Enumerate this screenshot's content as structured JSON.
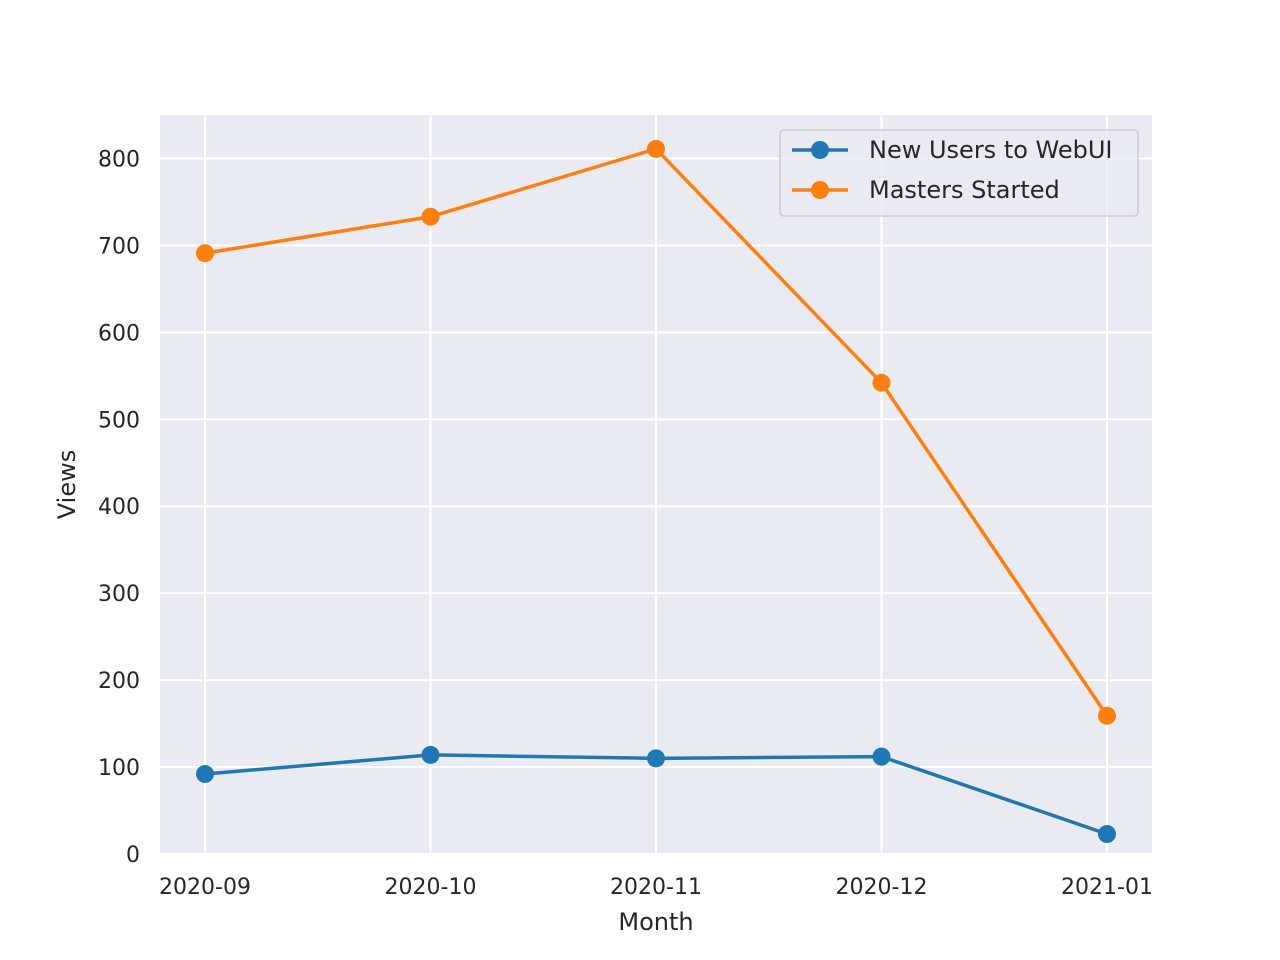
{
  "chart_data": {
    "type": "line",
    "title": "",
    "xlabel": "Month",
    "ylabel": "Views",
    "categories": [
      "2020-09",
      "2020-10",
      "2020-11",
      "2020-12",
      "2021-01"
    ],
    "ylim": [
      0,
      850
    ],
    "yticks": [
      0,
      100,
      200,
      300,
      400,
      500,
      600,
      700,
      800
    ],
    "grid": true,
    "legend_position": "top-right",
    "series": [
      {
        "name": "New Users to WebUI",
        "color": "#1f77b4",
        "marker": "circle",
        "values": [
          92,
          114,
          110,
          112,
          23
        ]
      },
      {
        "name": "Masters Started",
        "color": "#ff7f0e",
        "marker": "circle",
        "values": [
          691,
          733,
          811,
          542,
          159
        ]
      }
    ]
  },
  "style": {
    "plot_background": "#eaeaf2",
    "grid_color": "#ffffff",
    "text_color": "#262626"
  }
}
